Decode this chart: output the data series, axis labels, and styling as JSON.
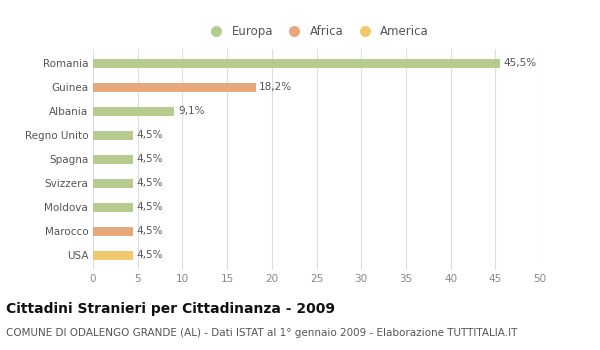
{
  "categories": [
    "Romania",
    "Guinea",
    "Albania",
    "Regno Unito",
    "Spagna",
    "Svizzera",
    "Moldova",
    "Marocco",
    "USA"
  ],
  "values": [
    45.5,
    18.2,
    9.1,
    4.5,
    4.5,
    4.5,
    4.5,
    4.5,
    4.5
  ],
  "labels": [
    "45,5%",
    "18,2%",
    "9,1%",
    "4,5%",
    "4,5%",
    "4,5%",
    "4,5%",
    "4,5%",
    "4,5%"
  ],
  "colors": [
    "#b5cc8e",
    "#e8a87c",
    "#b5cc8e",
    "#b5cc8e",
    "#b5cc8e",
    "#b5cc8e",
    "#b5cc8e",
    "#e8a87c",
    "#f0c96e"
  ],
  "legend_labels": [
    "Europa",
    "Africa",
    "America"
  ],
  "legend_colors": [
    "#b5cc8e",
    "#e8a87c",
    "#f0c96e"
  ],
  "xlim": [
    0,
    50
  ],
  "xticks": [
    0,
    5,
    10,
    15,
    20,
    25,
    30,
    35,
    40,
    45,
    50
  ],
  "title": "Cittadini Stranieri per Cittadinanza - 2009",
  "subtitle": "COMUNE DI ODALENGO GRANDE (AL) - Dati ISTAT al 1° gennaio 2009 - Elaborazione TUTTITALIA.IT",
  "bg_color": "#ffffff",
  "grid_color": "#dddddd",
  "bar_height": 0.38,
  "title_fontsize": 10,
  "subtitle_fontsize": 7.5,
  "label_fontsize": 7.5,
  "tick_fontsize": 7.5,
  "legend_fontsize": 8.5
}
